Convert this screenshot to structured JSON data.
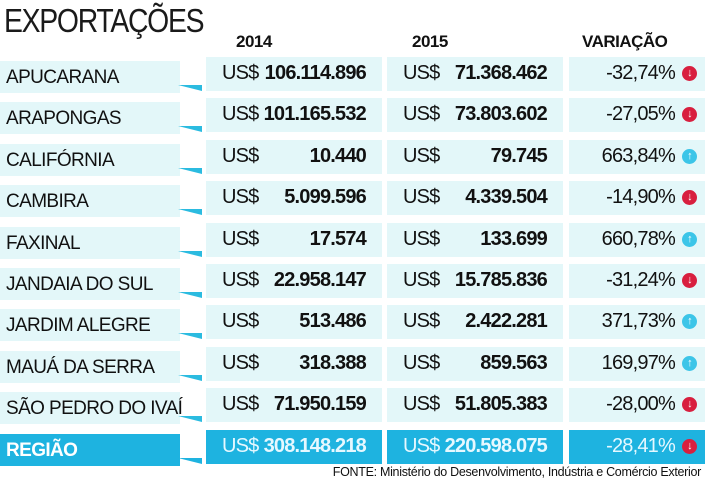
{
  "chart_data": {
    "type": "table",
    "title": "EXPORTAÇÕES",
    "columns": [
      "2014",
      "2015",
      "VARIAÇÃO"
    ],
    "currency": "US$",
    "rows": [
      {
        "name": "APUCARANA",
        "v2014": "106.114.896",
        "v2015": "71.368.462",
        "var": "-32,74%",
        "trend": "down"
      },
      {
        "name": "ARAPONGAS",
        "v2014": "101.165.532",
        "v2015": "73.803.602",
        "var": "-27,05%",
        "trend": "down"
      },
      {
        "name": "CALIFÓRNIA",
        "v2014": "10.440",
        "v2015": "79.745",
        "var": "663,84%",
        "trend": "up"
      },
      {
        "name": "CAMBIRA",
        "v2014": "5.099.596",
        "v2015": "4.339.504",
        "var": "-14,90%",
        "trend": "down"
      },
      {
        "name": "FAXINAL",
        "v2014": "17.574",
        "v2015": "133.699",
        "var": "660,78%",
        "trend": "up"
      },
      {
        "name": "JANDAIA DO SUL",
        "v2014": "22.958.147",
        "v2015": "15.785.836",
        "var": "-31,24%",
        "trend": "down"
      },
      {
        "name": "JARDIM ALEGRE",
        "v2014": "513.486",
        "v2015": "2.422.281",
        "var": "371,73%",
        "trend": "up"
      },
      {
        "name": "MAUÁ DA SERRA",
        "v2014": "318.388",
        "v2015": "859.563",
        "var": "169,97%",
        "trend": "up"
      },
      {
        "name": "SÃO PEDRO DO IVAÍ",
        "v2014": "71.950.159",
        "v2015": "51.805.383",
        "var": "-28,00%",
        "trend": "down"
      }
    ],
    "total": {
      "name": "REGIÃO",
      "v2014": "308.148.218",
      "v2015": "220.598.075",
      "var": "-28,41%",
      "trend": "down"
    },
    "source": "FONTE: Ministério do Desenvolvimento, Indústria e Comércio Exterior",
    "colors": {
      "accent": "#1eb3e0",
      "row_bg": "#e3f7f9",
      "down": "#d81f3f",
      "up": "#3cc5e8"
    }
  }
}
